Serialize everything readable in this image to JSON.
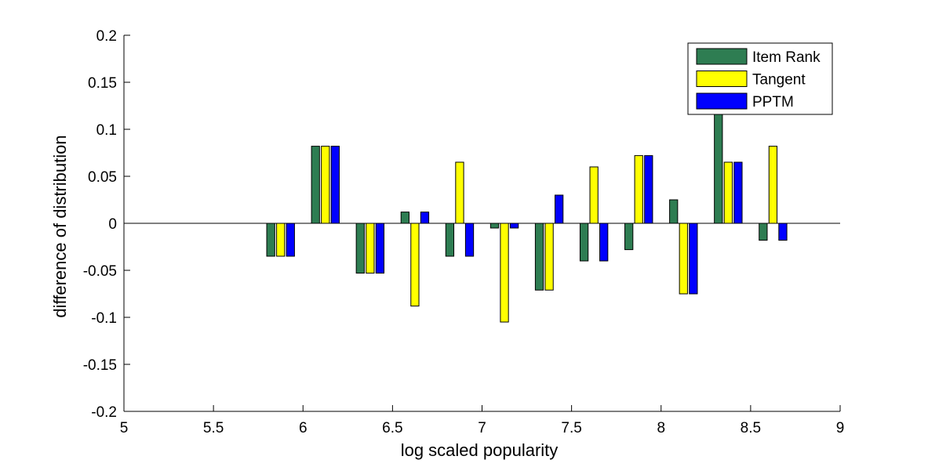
{
  "chart_data": {
    "type": "bar",
    "xlabel": "log scaled popularity",
    "ylabel": "difference of distribution",
    "xlim": [
      5,
      9
    ],
    "ylim": [
      -0.2,
      0.2
    ],
    "xticks": [
      5,
      5.5,
      6,
      6.5,
      7,
      7.5,
      8,
      8.5,
      9
    ],
    "xtick_labels": [
      "5",
      "5.5",
      "6",
      "6.5",
      "7",
      "7.5",
      "8",
      "8.5",
      "9"
    ],
    "yticks": [
      -0.2,
      -0.15,
      -0.1,
      -0.05,
      0,
      0.05,
      0.1,
      0.15,
      0.2
    ],
    "ytick_labels": [
      "-0.2",
      "-0.15",
      "-0.1",
      "-0.05",
      "0",
      "0.05",
      "0.1",
      "0.15",
      "0.2"
    ],
    "grid": false,
    "legend_position": "top-right",
    "x": [
      5.875,
      6.125,
      6.375,
      6.625,
      6.875,
      7.125,
      7.375,
      7.625,
      7.875,
      8.125,
      8.375,
      8.625
    ],
    "series": [
      {
        "name": "Item Rank",
        "color": "#2e7d52",
        "values": [
          -0.035,
          0.082,
          -0.053,
          0.012,
          -0.035,
          -0.005,
          -0.071,
          -0.04,
          -0.028,
          0.025,
          0.118,
          -0.018
        ]
      },
      {
        "name": "Tangent",
        "color": "#ffff00",
        "values": [
          -0.035,
          0.082,
          -0.053,
          -0.088,
          0.065,
          -0.105,
          -0.071,
          0.06,
          0.072,
          -0.075,
          0.065,
          0.082
        ]
      },
      {
        "name": "PPTM",
        "color": "#0000ff",
        "values": [
          -0.035,
          0.082,
          -0.053,
          0.012,
          -0.035,
          -0.005,
          0.03,
          -0.04,
          0.072,
          -0.075,
          0.065,
          -0.018
        ]
      }
    ]
  }
}
